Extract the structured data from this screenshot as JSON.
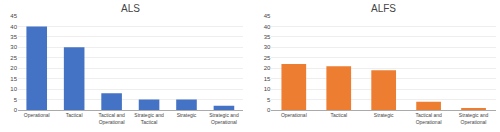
{
  "chart_data": [
    {
      "type": "bar",
      "title": "ALS",
      "categories": [
        "Operational",
        "Tactical",
        "Tactical and\nOperational",
        "Strategic and\nTactical",
        "Strategic",
        "Strategic and\nOperational"
      ],
      "values": [
        40,
        30,
        8,
        5,
        5,
        2
      ],
      "color": "#4472C4",
      "ylim": [
        0,
        45
      ],
      "yticks": [
        0,
        5,
        10,
        15,
        20,
        25,
        30,
        35,
        40,
        45
      ],
      "grid": true
    },
    {
      "type": "bar",
      "title": "ALFS",
      "categories": [
        "Operational",
        "Tactical",
        "Strategic",
        "Tactical and\nOperational",
        "Strategic and\nOperational"
      ],
      "values": [
        22,
        21,
        19,
        4,
        1
      ],
      "color": "#ED7D31",
      "ylim": [
        0,
        45
      ],
      "yticks": [
        0,
        5,
        10,
        15,
        20,
        25,
        30,
        35,
        40,
        45
      ],
      "grid": true
    }
  ]
}
